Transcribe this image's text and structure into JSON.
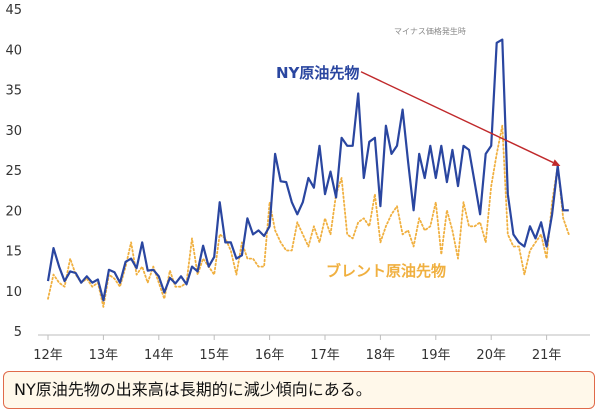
{
  "caption": "NY原油先物の出来高は長期的に減少傾向にある。",
  "chart_data": {
    "type": "line",
    "categories": [
      "12年",
      "13年",
      "14年",
      "15年",
      "16年",
      "17年",
      "18年",
      "19年",
      "20年",
      "21年"
    ],
    "ylim": [
      5,
      45
    ],
    "yticks": [
      5,
      10,
      15,
      20,
      25,
      30,
      35,
      40,
      45
    ],
    "annotations": [
      {
        "text": "マイナス価格発生時"
      }
    ],
    "trend_arrow": {
      "from": {
        "x": 17.65,
        "y": 37.2
      },
      "to": {
        "x": 21.25,
        "y": 25.5
      },
      "color": "#c0292b"
    },
    "series": [
      {
        "name": "NY原油先物",
        "color": "#2a46a0",
        "style": "solid",
        "x": [
          12.0,
          12.1,
          12.2,
          12.3,
          12.4,
          12.5,
          12.6,
          12.7,
          12.8,
          12.9,
          13.0,
          13.1,
          13.2,
          13.3,
          13.4,
          13.5,
          13.6,
          13.7,
          13.8,
          13.9,
          14.0,
          14.1,
          14.2,
          14.3,
          14.4,
          14.5,
          14.6,
          14.7,
          14.8,
          14.9,
          15.0,
          15.1,
          15.2,
          15.3,
          15.4,
          15.5,
          15.6,
          15.7,
          15.8,
          15.9,
          16.0,
          16.1,
          16.2,
          16.3,
          16.4,
          16.5,
          16.6,
          16.7,
          16.8,
          16.9,
          17.0,
          17.1,
          17.2,
          17.3,
          17.4,
          17.5,
          17.6,
          17.7,
          17.8,
          17.9,
          18.0,
          18.1,
          18.2,
          18.3,
          18.4,
          18.5,
          18.6,
          18.7,
          18.8,
          18.9,
          19.0,
          19.1,
          19.2,
          19.3,
          19.4,
          19.5,
          19.6,
          19.7,
          19.8,
          19.9,
          20.0,
          20.1,
          20.2,
          20.3,
          20.4,
          20.5,
          20.6,
          20.7,
          20.8,
          20.9,
          21.0,
          21.1,
          21.2,
          21.3,
          21.4
        ],
        "y": [
          11.2,
          15.3,
          13.0,
          11.2,
          12.4,
          12.2,
          11.0,
          11.8,
          11.0,
          11.4,
          8.8,
          12.6,
          12.3,
          11.0,
          13.6,
          14.0,
          12.8,
          16.0,
          12.5,
          12.6,
          11.8,
          9.8,
          11.6,
          10.9,
          11.8,
          10.8,
          13.0,
          12.4,
          15.6,
          13.0,
          14.2,
          21.0,
          16.0,
          16.0,
          14.0,
          14.4,
          19.0,
          17.0,
          17.5,
          16.8,
          18.0,
          27.0,
          23.6,
          23.5,
          21.0,
          19.5,
          21.0,
          24.0,
          22.8,
          28.0,
          22.0,
          24.8,
          21.6,
          29.0,
          28.0,
          28.0,
          34.5,
          24.0,
          28.5,
          29.0,
          20.5,
          30.5,
          27.0,
          28.0,
          32.5,
          26.0,
          20.0,
          27.0,
          24.0,
          28.0,
          24.0,
          28.0,
          23.5,
          27.5,
          23.0,
          28.0,
          27.5,
          23.5,
          19.5,
          27.0,
          28.0,
          40.8,
          41.2,
          22.0,
          17.0,
          16.0,
          15.5,
          18.0,
          16.5,
          18.5,
          15.5,
          19.5,
          25.5,
          20.0,
          20.0
        ]
      },
      {
        "name": "ブレント原油先物",
        "color": "#f0b040",
        "style": "dotted",
        "x": [
          12.0,
          12.1,
          12.2,
          12.3,
          12.4,
          12.5,
          12.6,
          12.7,
          12.8,
          12.9,
          13.0,
          13.1,
          13.2,
          13.3,
          13.4,
          13.5,
          13.6,
          13.7,
          13.8,
          13.9,
          14.0,
          14.1,
          14.2,
          14.3,
          14.4,
          14.5,
          14.6,
          14.7,
          14.8,
          14.9,
          15.0,
          15.1,
          15.2,
          15.3,
          15.4,
          15.5,
          15.6,
          15.7,
          15.8,
          15.9,
          16.0,
          16.1,
          16.2,
          16.3,
          16.4,
          16.5,
          16.6,
          16.7,
          16.8,
          16.9,
          17.0,
          17.1,
          17.2,
          17.3,
          17.4,
          17.5,
          17.6,
          17.7,
          17.8,
          17.9,
          18.0,
          18.1,
          18.2,
          18.3,
          18.4,
          18.5,
          18.6,
          18.7,
          18.8,
          18.9,
          19.0,
          19.1,
          19.2,
          19.3,
          19.4,
          19.5,
          19.6,
          19.7,
          19.8,
          19.9,
          20.0,
          20.1,
          20.2,
          20.3,
          20.4,
          20.5,
          20.6,
          20.7,
          20.8,
          20.9,
          21.0,
          21.1,
          21.2,
          21.3,
          21.4
        ],
        "y": [
          9.0,
          12.0,
          11.0,
          10.5,
          14.0,
          12.0,
          11.0,
          11.5,
          10.5,
          11.0,
          8.0,
          12.0,
          11.5,
          10.5,
          13.0,
          16.0,
          12.0,
          13.0,
          11.0,
          13.0,
          11.0,
          9.0,
          12.5,
          10.5,
          10.5,
          11.0,
          16.5,
          12.0,
          14.0,
          13.0,
          12.0,
          17.0,
          16.5,
          15.0,
          12.0,
          16.0,
          14.0,
          14.0,
          13.0,
          13.0,
          21.0,
          17.5,
          16.0,
          15.0,
          15.0,
          18.5,
          17.0,
          15.5,
          18.0,
          16.0,
          19.0,
          17.0,
          22.0,
          24.0,
          17.0,
          16.5,
          18.5,
          19.0,
          18.0,
          22.0,
          16.0,
          18.0,
          19.5,
          20.5,
          17.0,
          17.5,
          15.5,
          19.0,
          17.5,
          18.0,
          21.0,
          14.5,
          20.0,
          17.5,
          14.0,
          21.0,
          18.0,
          18.0,
          18.5,
          16.0,
          23.0,
          27.0,
          30.5,
          17.0,
          15.5,
          15.5,
          12.0,
          15.0,
          16.0,
          17.0,
          14.0,
          21.0,
          25.5,
          19.0,
          17.0
        ]
      }
    ]
  }
}
